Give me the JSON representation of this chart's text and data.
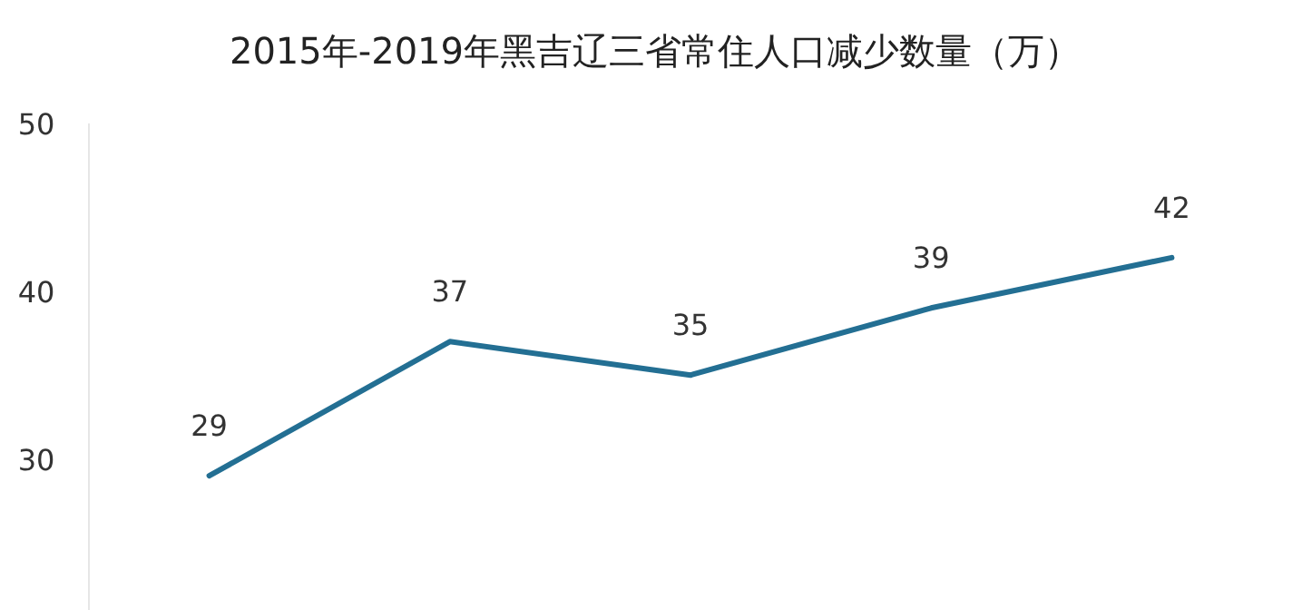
{
  "chart_data": {
    "type": "line",
    "title": "2015年-2019年黑吉辽三省常住人口减少数量（万）",
    "categories": [
      null,
      null,
      null,
      null,
      null
    ],
    "series": [
      {
        "color": "#236f93",
        "values": [
          29,
          37,
          35,
          39,
          42
        ]
      }
    ],
    "ylim": [
      21,
      50
    ],
    "yticks": [
      30,
      40,
      50
    ],
    "data_labels": true,
    "grid": false,
    "marker": "none",
    "line_style": "solid"
  }
}
